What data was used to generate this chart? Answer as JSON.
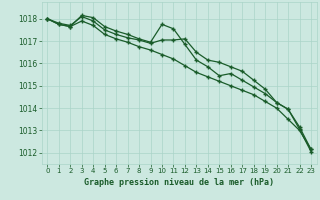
{
  "background_color": "#cce8e0",
  "grid_color": "#aad4c8",
  "line_color": "#1a5c2a",
  "marker_color": "#1a5c2a",
  "title": "Graphe pression niveau de la mer (hPa)",
  "ylim": [
    1011.5,
    1018.75
  ],
  "yticks": [
    1012,
    1013,
    1014,
    1015,
    1016,
    1017,
    1018
  ],
  "xticks": [
    0,
    1,
    2,
    3,
    4,
    5,
    6,
    7,
    8,
    9,
    10,
    11,
    12,
    13,
    14,
    15,
    16,
    17,
    18,
    19,
    20,
    21,
    22,
    23
  ],
  "series1": [
    1018.0,
    1017.75,
    1017.65,
    1018.15,
    1018.05,
    1017.65,
    1017.45,
    1017.3,
    1017.1,
    1016.95,
    1017.75,
    1017.55,
    1016.85,
    1016.15,
    1015.85,
    1015.45,
    1015.55,
    1015.25,
    1014.95,
    1014.65,
    1014.25,
    1013.95,
    1013.15,
    1012.15
  ],
  "series2": [
    1018.0,
    1017.8,
    1017.7,
    1018.1,
    1017.9,
    1017.5,
    1017.3,
    1017.15,
    1017.05,
    1016.9,
    1017.05,
    1017.05,
    1017.1,
    1016.5,
    1016.15,
    1016.05,
    1015.85,
    1015.65,
    1015.25,
    1014.85,
    1014.25,
    1013.95,
    1013.05,
    1012.05
  ],
  "series3": [
    1018.0,
    1017.75,
    1017.65,
    1017.9,
    1017.7,
    1017.3,
    1017.1,
    1016.95,
    1016.75,
    1016.6,
    1016.4,
    1016.2,
    1015.9,
    1015.6,
    1015.4,
    1015.2,
    1015.0,
    1014.8,
    1014.6,
    1014.3,
    1014.0,
    1013.5,
    1013.0,
    1012.15
  ]
}
